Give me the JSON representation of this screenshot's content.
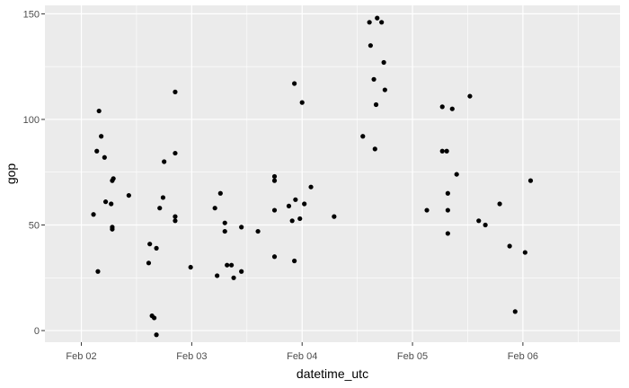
{
  "chart_data": {
    "type": "scatter",
    "title": "",
    "xlabel": "datetime_utc",
    "ylabel": "gop",
    "x_unit": "days since Feb 02",
    "xlim": [
      -0.33,
      4.88
    ],
    "ylim": [
      -5.5,
      154
    ],
    "x_ticks": [
      {
        "value": 0,
        "label": "Feb 02"
      },
      {
        "value": 1,
        "label": "Feb 03"
      },
      {
        "value": 2,
        "label": "Feb 04"
      },
      {
        "value": 3,
        "label": "Feb 05"
      },
      {
        "value": 4,
        "label": "Feb 06"
      }
    ],
    "y_ticks": [
      {
        "value": 0,
        "label": "0"
      },
      {
        "value": 50,
        "label": "50"
      },
      {
        "value": 100,
        "label": "100"
      },
      {
        "value": 150,
        "label": "150"
      }
    ],
    "grid": true,
    "background": "#ebebeb",
    "grid_color": "#ffffff",
    "point_color": "#000000",
    "points": [
      {
        "x": 0.11,
        "y": 55
      },
      {
        "x": 0.14,
        "y": 85
      },
      {
        "x": 0.15,
        "y": 28
      },
      {
        "x": 0.16,
        "y": 104
      },
      {
        "x": 0.18,
        "y": 92
      },
      {
        "x": 0.21,
        "y": 82
      },
      {
        "x": 0.22,
        "y": 61
      },
      {
        "x": 0.27,
        "y": 60
      },
      {
        "x": 0.28,
        "y": 71
      },
      {
        "x": 0.29,
        "y": 72
      },
      {
        "x": 0.28,
        "y": 49
      },
      {
        "x": 0.28,
        "y": 48
      },
      {
        "x": 0.43,
        "y": 64
      },
      {
        "x": 0.61,
        "y": 32
      },
      {
        "x": 0.62,
        "y": 41
      },
      {
        "x": 0.64,
        "y": 7
      },
      {
        "x": 0.66,
        "y": 6
      },
      {
        "x": 0.68,
        "y": -2
      },
      {
        "x": 0.68,
        "y": 39
      },
      {
        "x": 0.71,
        "y": 58
      },
      {
        "x": 0.74,
        "y": 63
      },
      {
        "x": 0.75,
        "y": 80
      },
      {
        "x": 0.85,
        "y": 113
      },
      {
        "x": 0.85,
        "y": 84
      },
      {
        "x": 0.85,
        "y": 54
      },
      {
        "x": 0.85,
        "y": 52
      },
      {
        "x": 0.99,
        "y": 30
      },
      {
        "x": 1.21,
        "y": 58
      },
      {
        "x": 1.23,
        "y": 26
      },
      {
        "x": 1.26,
        "y": 65
      },
      {
        "x": 1.3,
        "y": 51
      },
      {
        "x": 1.3,
        "y": 47
      },
      {
        "x": 1.32,
        "y": 31
      },
      {
        "x": 1.36,
        "y": 31
      },
      {
        "x": 1.38,
        "y": 25
      },
      {
        "x": 1.45,
        "y": 49
      },
      {
        "x": 1.45,
        "y": 28
      },
      {
        "x": 1.6,
        "y": 47
      },
      {
        "x": 1.75,
        "y": 73
      },
      {
        "x": 1.75,
        "y": 71
      },
      {
        "x": 1.75,
        "y": 57
      },
      {
        "x": 1.75,
        "y": 35
      },
      {
        "x": 1.88,
        "y": 59
      },
      {
        "x": 1.91,
        "y": 52
      },
      {
        "x": 1.93,
        "y": 33
      },
      {
        "x": 1.93,
        "y": 117
      },
      {
        "x": 1.94,
        "y": 62
      },
      {
        "x": 1.98,
        "y": 53
      },
      {
        "x": 2.0,
        "y": 108
      },
      {
        "x": 2.02,
        "y": 60
      },
      {
        "x": 2.08,
        "y": 68
      },
      {
        "x": 2.29,
        "y": 54
      },
      {
        "x": 2.55,
        "y": 92
      },
      {
        "x": 2.61,
        "y": 146
      },
      {
        "x": 2.62,
        "y": 135
      },
      {
        "x": 2.65,
        "y": 119
      },
      {
        "x": 2.67,
        "y": 107
      },
      {
        "x": 2.66,
        "y": 86
      },
      {
        "x": 2.68,
        "y": 148
      },
      {
        "x": 2.72,
        "y": 146
      },
      {
        "x": 2.74,
        "y": 127
      },
      {
        "x": 2.75,
        "y": 114
      },
      {
        "x": 3.13,
        "y": 57
      },
      {
        "x": 3.27,
        "y": 106
      },
      {
        "x": 3.27,
        "y": 85
      },
      {
        "x": 3.31,
        "y": 85
      },
      {
        "x": 3.32,
        "y": 65
      },
      {
        "x": 3.32,
        "y": 57
      },
      {
        "x": 3.32,
        "y": 46
      },
      {
        "x": 3.36,
        "y": 105
      },
      {
        "x": 3.4,
        "y": 74
      },
      {
        "x": 3.52,
        "y": 111
      },
      {
        "x": 3.6,
        "y": 52
      },
      {
        "x": 3.66,
        "y": 50
      },
      {
        "x": 3.79,
        "y": 60
      },
      {
        "x": 3.88,
        "y": 40
      },
      {
        "x": 3.93,
        "y": 9
      },
      {
        "x": 4.02,
        "y": 37
      },
      {
        "x": 4.07,
        "y": 71
      }
    ]
  }
}
